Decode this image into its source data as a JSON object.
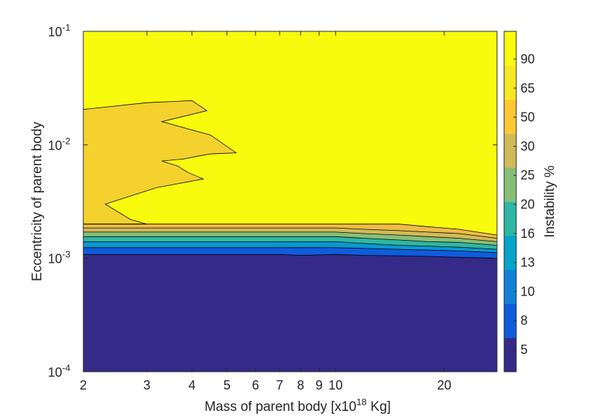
{
  "chart_data": {
    "type": "contour",
    "xscale": "log",
    "yscale": "log",
    "xlabel": "Mass of parent body [x10",
    "xlabel_exponent": "18",
    "xlabel_suffix": " Kg]",
    "ylabel": "Eccentricity of parent body",
    "xlim": [
      2,
      28
    ],
    "ylim": [
      0.0001,
      0.1
    ],
    "x_ticks": [
      {
        "value": 2,
        "label": "2"
      },
      {
        "value": 3,
        "label": "3"
      },
      {
        "value": 4,
        "label": "4"
      },
      {
        "value": 5,
        "label": "5"
      },
      {
        "value": 6,
        "label": "6"
      },
      {
        "value": 7,
        "label": "7"
      },
      {
        "value": 8,
        "label": "8"
      },
      {
        "value": 9,
        "label": "9"
      },
      {
        "value": 10,
        "label": "10"
      },
      {
        "value": 20,
        "label": "20"
      }
    ],
    "y_ticks": [
      {
        "value": 0.1,
        "base": "10",
        "exp": "-1"
      },
      {
        "value": 0.01,
        "base": "10",
        "exp": "-2"
      },
      {
        "value": 0.001,
        "base": "10",
        "exp": "-3"
      },
      {
        "value": 0.0001,
        "base": "10",
        "exp": "-4"
      }
    ],
    "colorbar": {
      "label": "Instability %",
      "ticks": [
        "5",
        "8",
        "10",
        "13",
        "16",
        "20",
        "25",
        "30",
        "50",
        "65",
        "90"
      ],
      "colors": [
        "#352a87",
        "#0f5cdd",
        "#1481d6",
        "#06a4ca",
        "#2eb7a4",
        "#87bf77",
        "#d1bb59",
        "#fec832",
        "#f5e924",
        "#f9fb0e"
      ]
    },
    "background_color": "#f9fb0e",
    "colormap": [
      "#352a87",
      "#2d3ac4",
      "#0f5cdd",
      "#1481d6",
      "#0b97d0",
      "#06a4ca",
      "#17b3b8",
      "#2eb7a4",
      "#5bbd8a",
      "#87bf77",
      "#aebe67",
      "#d1bb59",
      "#eebc46",
      "#fec832",
      "#f9dd24",
      "#f5e924",
      "#f9fb0e"
    ],
    "level_boundaries": [
      [
        [
          2,
          0.00108
        ],
        [
          5,
          0.00108
        ],
        [
          6,
          0.00108
        ],
        [
          7,
          0.00108
        ],
        [
          8,
          0.00106
        ],
        [
          10,
          0.00108
        ],
        [
          12,
          0.00106
        ],
        [
          15,
          0.00105
        ],
        [
          18,
          0.00104
        ],
        [
          22,
          0.00102
        ],
        [
          28,
          0.001
        ]
      ],
      [
        [
          2,
          0.00124
        ],
        [
          5,
          0.00124
        ],
        [
          6,
          0.00124
        ],
        [
          7,
          0.00124
        ],
        [
          8,
          0.00124
        ],
        [
          10,
          0.00124
        ],
        [
          12,
          0.00122
        ],
        [
          15,
          0.0012
        ],
        [
          18,
          0.00118
        ],
        [
          22,
          0.00116
        ],
        [
          28,
          0.00112
        ]
      ],
      [
        [
          2,
          0.0014
        ],
        [
          5,
          0.0014
        ],
        [
          6,
          0.0014
        ],
        [
          7,
          0.0014
        ],
        [
          8,
          0.0014
        ],
        [
          10,
          0.0014
        ],
        [
          12,
          0.00135
        ],
        [
          15,
          0.0013
        ],
        [
          18,
          0.00128
        ],
        [
          22,
          0.00125
        ],
        [
          28,
          0.0012
        ]
      ],
      [
        [
          2,
          0.00155
        ],
        [
          5,
          0.00155
        ],
        [
          6,
          0.00155
        ],
        [
          7,
          0.00155
        ],
        [
          8,
          0.00155
        ],
        [
          10,
          0.00155
        ],
        [
          12,
          0.0015
        ],
        [
          15,
          0.00145
        ],
        [
          18,
          0.0014
        ],
        [
          22,
          0.00138
        ],
        [
          28,
          0.0013
        ]
      ],
      [
        [
          2,
          0.0017
        ],
        [
          5,
          0.0017
        ],
        [
          6,
          0.0017
        ],
        [
          7,
          0.0017
        ],
        [
          8,
          0.0017
        ],
        [
          10,
          0.0017
        ],
        [
          12,
          0.00165
        ],
        [
          15,
          0.0016
        ],
        [
          18,
          0.00155
        ],
        [
          22,
          0.0015
        ],
        [
          28,
          0.0014
        ]
      ],
      [
        [
          2,
          0.00185
        ],
        [
          5,
          0.00185
        ],
        [
          6,
          0.00185
        ],
        [
          7,
          0.00185
        ],
        [
          8,
          0.00185
        ],
        [
          10,
          0.00185
        ],
        [
          12,
          0.0018
        ],
        [
          15,
          0.00175
        ],
        [
          18,
          0.0017
        ],
        [
          22,
          0.00165
        ],
        [
          28,
          0.0015
        ]
      ],
      [
        [
          2,
          0.002
        ],
        [
          5,
          0.002
        ],
        [
          6,
          0.002
        ],
        [
          7,
          0.002
        ],
        [
          8,
          0.002
        ],
        [
          10,
          0.002
        ],
        [
          12,
          0.002
        ],
        [
          15,
          0.002
        ],
        [
          18,
          0.0019
        ],
        [
          22,
          0.0018
        ],
        [
          28,
          0.0016
        ]
      ]
    ],
    "top_region": [
      [
        2,
        0.0205
      ],
      [
        3,
        0.0235
      ],
      [
        4,
        0.0245
      ],
      [
        4.4,
        0.02
      ],
      [
        3.3,
        0.016
      ],
      [
        4.5,
        0.0122
      ],
      [
        5.3,
        0.0085
      ],
      [
        4.5,
        0.0083
      ],
      [
        4.2,
        0.008
      ],
      [
        3.8,
        0.0075
      ],
      [
        3.3,
        0.0072
      ],
      [
        3.65,
        0.0065
      ],
      [
        3.9,
        0.0057
      ],
      [
        4.3,
        0.005
      ],
      [
        3.2,
        0.0042
      ],
      [
        2.3,
        0.003
      ],
      [
        2.7,
        0.0022
      ],
      [
        3,
        0.002
      ],
      [
        2,
        0.002
      ]
    ]
  }
}
